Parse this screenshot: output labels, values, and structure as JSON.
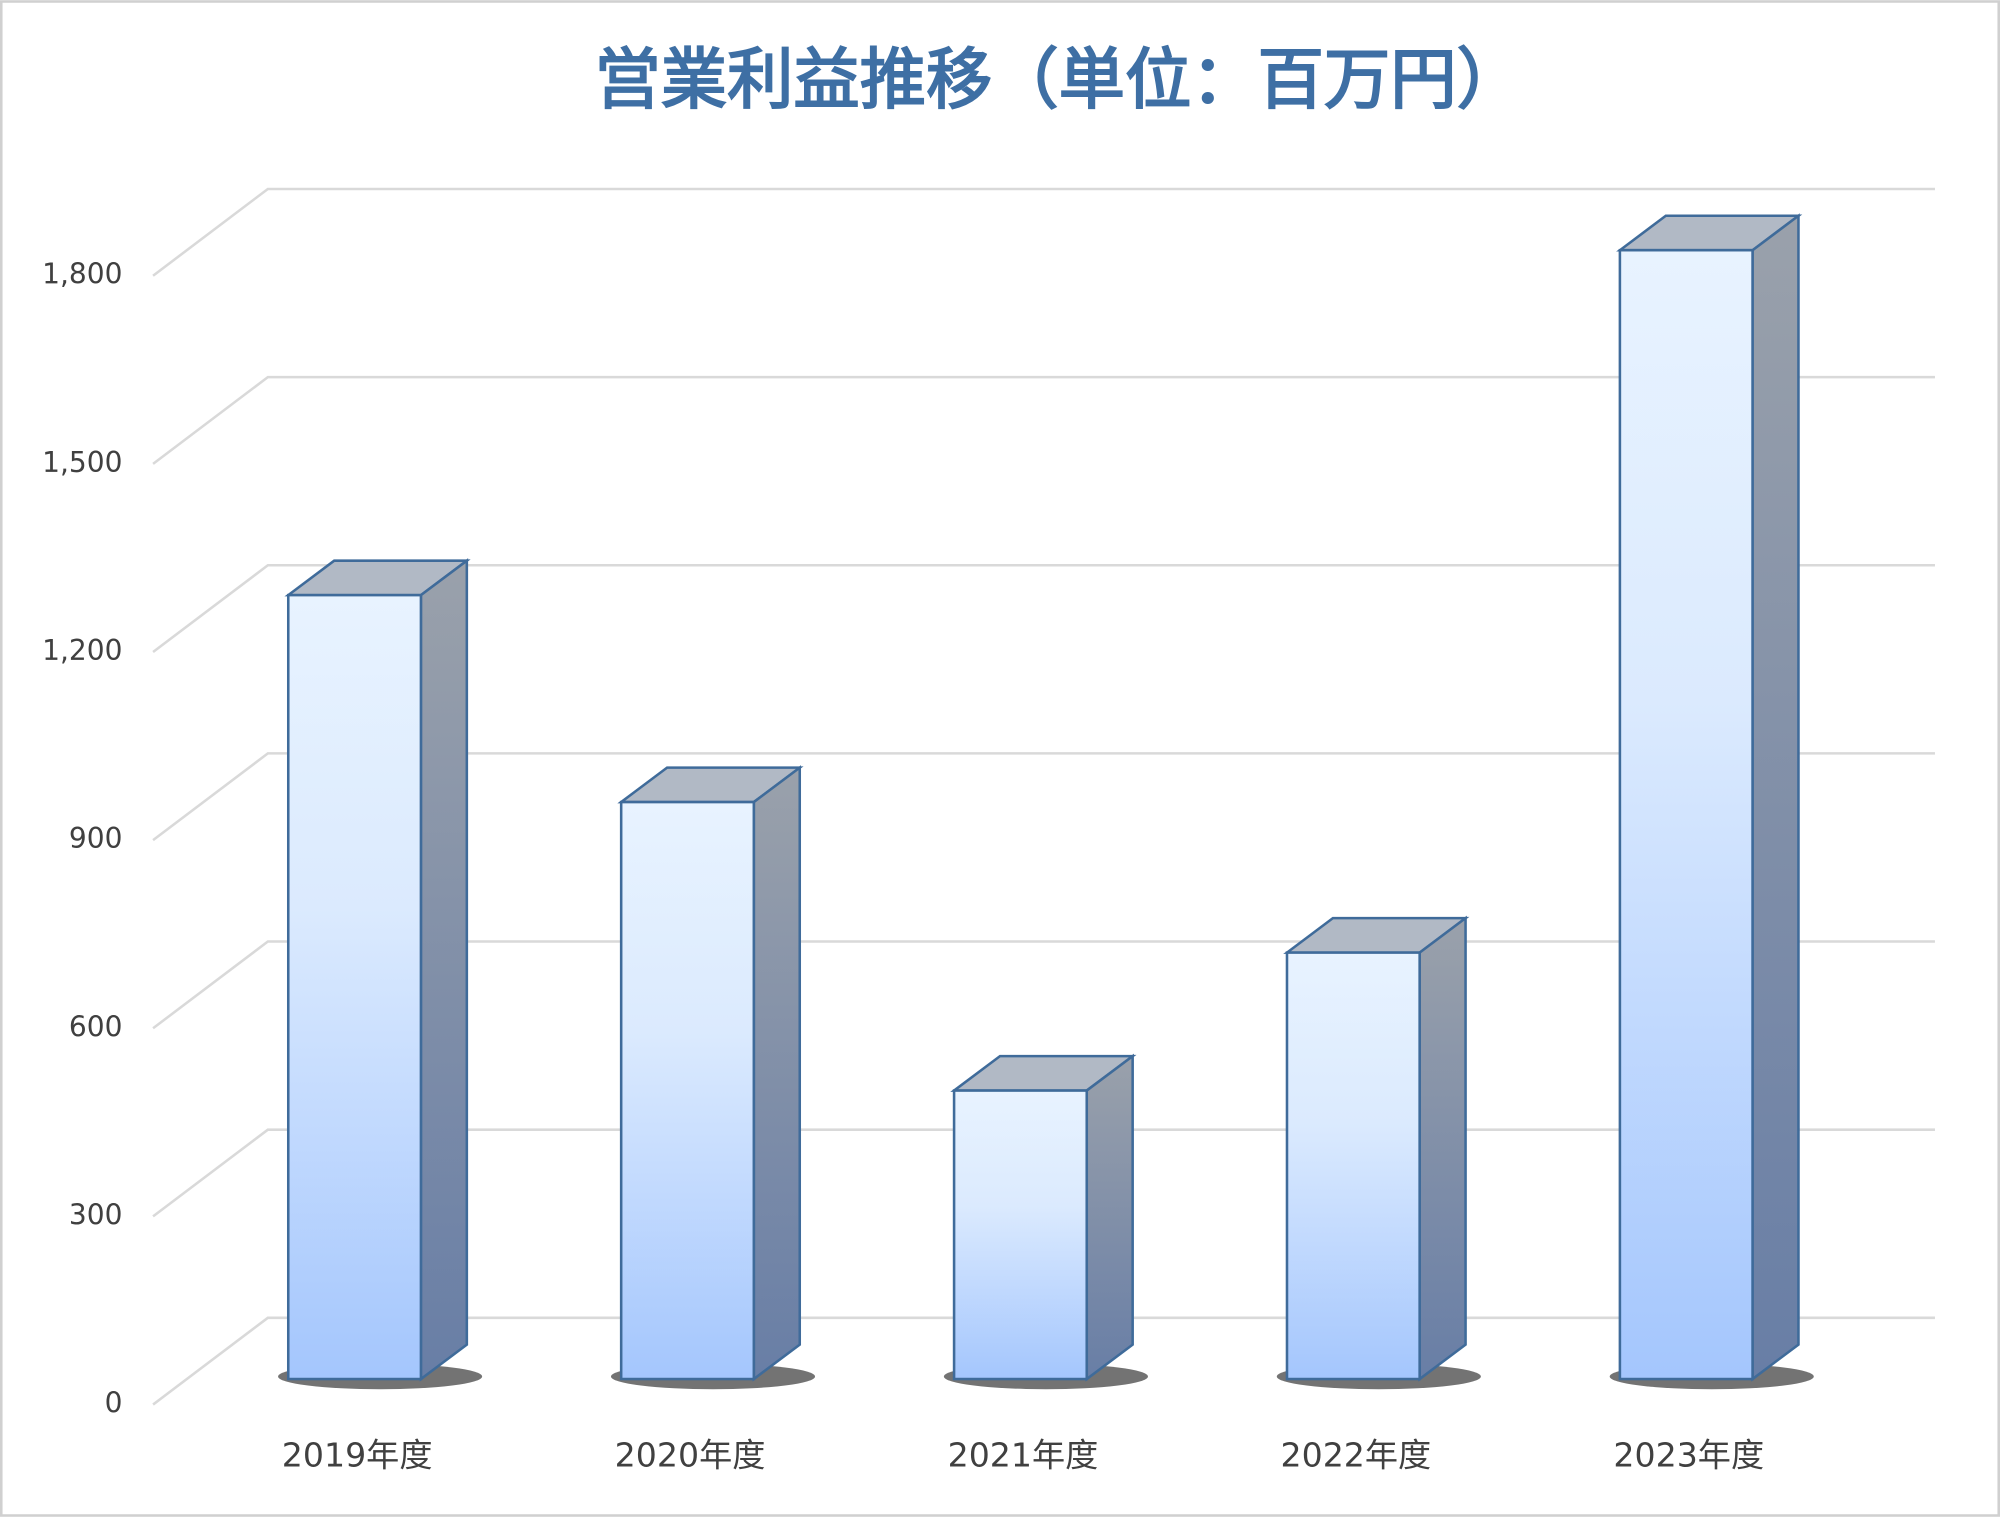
{
  "chart_data": {
    "type": "bar3d",
    "title": "営業利益推移（単位：百万円）",
    "categories": [
      "2019年度",
      "2020年度",
      "2021年度",
      "2022年度",
      "2023年度"
    ],
    "values": [
      1250,
      920,
      460,
      680,
      1800
    ],
    "ylim": [
      0,
      1800
    ],
    "yticks": [
      0,
      300,
      600,
      900,
      {
        "value": 1200,
        "label": "1,200"
      },
      {
        "value": 1500,
        "label": "1,500"
      },
      {
        "value": 1800,
        "label": "1,800"
      }
    ],
    "grid": true,
    "color": "#a6c8ff"
  }
}
